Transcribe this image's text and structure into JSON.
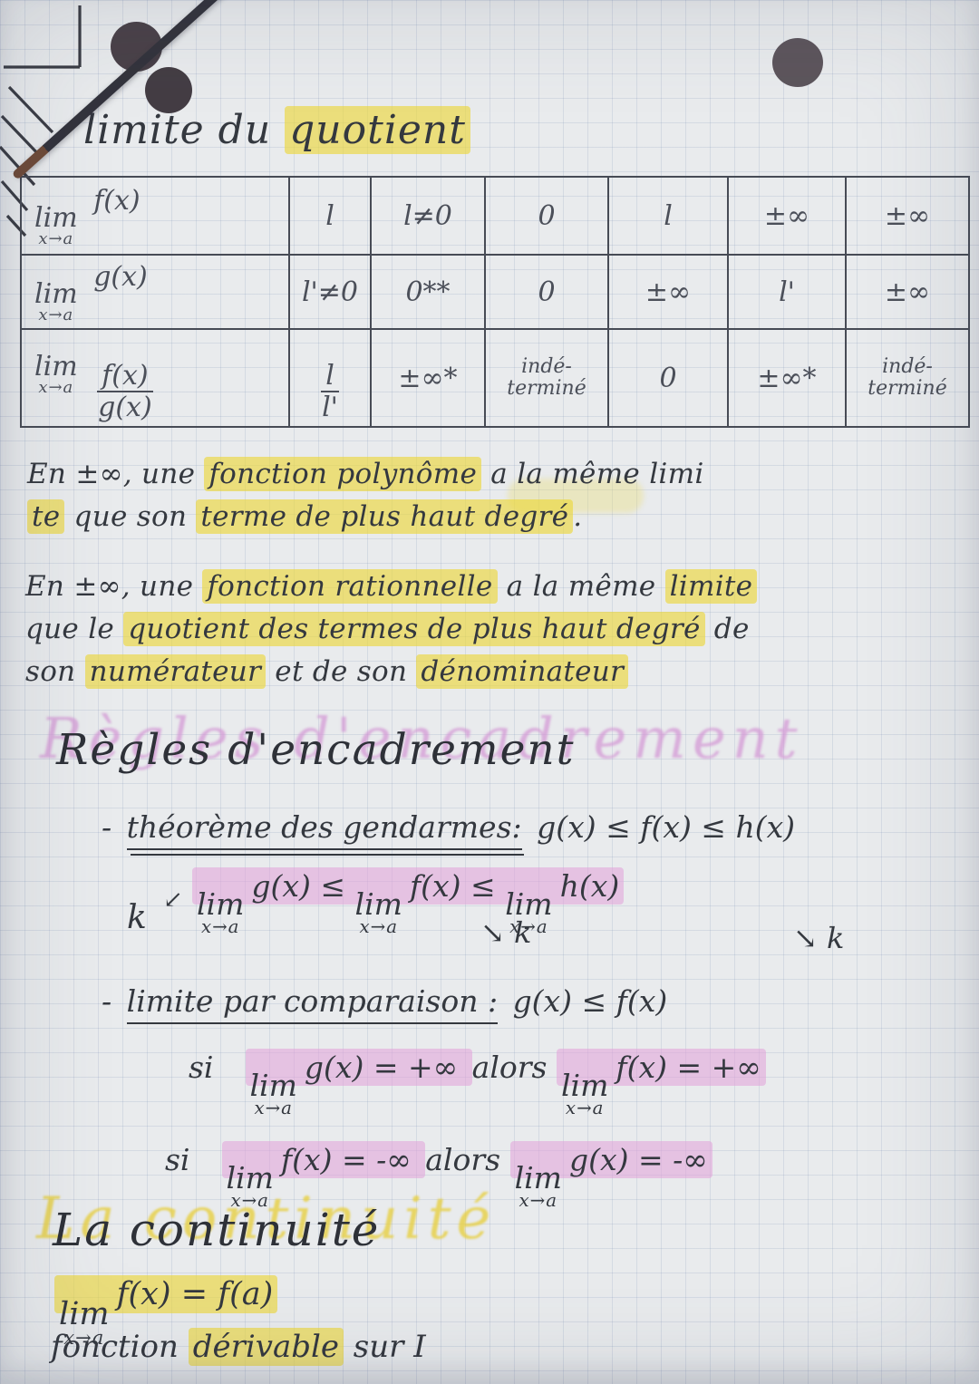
{
  "colors": {
    "paper": "#e9ebed",
    "grid_line": "#c7d0db",
    "ink": "#34383f",
    "pencil_table": "#4b4f59",
    "highlight_yellow": "#ecd735",
    "highlight_pink": "#e1a0d9",
    "marker_pink_echo": "#d296d4",
    "marker_yellow_echo": "#e7ce3e",
    "pen_tip_brown": "#6e4a38",
    "ink_dot_gray": "#4a4148"
  },
  "title": {
    "pre": "limite du ",
    "hl": "quotient"
  },
  "table": {
    "rows": [
      {
        "lim": "lim",
        "sub": "x→a",
        "expr": "f(x)",
        "cells": [
          "l",
          "l≠0",
          "0",
          "l",
          "±∞",
          "±∞"
        ]
      },
      {
        "lim": "lim",
        "sub": "x→a",
        "expr": "g(x)",
        "cells": [
          "l'≠0",
          "0**",
          "0",
          "±∞",
          "l'",
          "±∞"
        ]
      },
      {
        "lim": "lim",
        "sub": "x→a",
        "num": "f(x)",
        "den": "g(x)",
        "frac": {
          "num": "l",
          "den": "l'"
        },
        "cells": [
          "±∞*",
          "indé-\nterminé",
          "0",
          "±∞*",
          "indé-\nterminé"
        ]
      }
    ]
  },
  "p1": {
    "l1": [
      {
        "t": "En ±∞, une "
      },
      {
        "t": "fonction polynôme",
        "hl": "y"
      },
      {
        "t": " a la même limi"
      }
    ],
    "l2": [
      {
        "t": "te",
        "hl": "y"
      },
      {
        "t": " que son "
      },
      {
        "t": "terme de plus haut degré",
        "hl": "y"
      },
      {
        "t": "."
      }
    ]
  },
  "p2": {
    "l1": [
      {
        "t": "En ±∞, une "
      },
      {
        "t": "fonction rationnelle",
        "hl": "y"
      },
      {
        "t": " a la même "
      },
      {
        "t": "limite",
        "hl": "y"
      }
    ],
    "l2": [
      {
        "t": "que le "
      },
      {
        "t": "quotient des termes de plus haut degré",
        "hl": "y"
      },
      {
        "t": " de"
      }
    ],
    "l3": [
      {
        "t": "son "
      },
      {
        "t": "numérateur",
        "hl": "y"
      },
      {
        "t": " et de son "
      },
      {
        "t": "dénominateur",
        "hl": "y"
      }
    ]
  },
  "encadrement": {
    "heading": "Règles d'encadrement",
    "gendarmes": {
      "dash": "-",
      "label": "théorème des gendarmes:",
      "rhs": "g(x) ≤ f(x) ≤ h(x)"
    },
    "squeeze": {
      "k": "k",
      "swoop": "↙",
      "t1": {
        "lim": "lim",
        "sub": "x→a",
        "fn": "g(x)"
      },
      "le1": "≤",
      "t2": {
        "lim": "lim",
        "sub": "x→a",
        "fn": "f(x)"
      },
      "le2": "≤",
      "t3": {
        "lim": "lim",
        "sub": "x→a",
        "fn": "h(x)"
      },
      "k1": "↘ k",
      "k2": "↘ k"
    },
    "comparaison": {
      "dash": "-",
      "label": "limite par comparaison :",
      "rhs": "g(x) ≤ f(x)"
    },
    "si1": {
      "si": "si",
      "lim1": "lim",
      "sub1": "x→a",
      "e1": "g(x) = +∞",
      "alors": "alors",
      "lim2": "lim",
      "sub2": "x→a",
      "e2": "f(x) = +∞"
    },
    "si2": {
      "si": "si",
      "lim1": "lim",
      "sub1": "x→a",
      "e1": "f(x) = -∞",
      "alors": "alors",
      "lim2": "lim",
      "sub2": "x→a",
      "e2": "g(x) = -∞"
    }
  },
  "continuite": {
    "heading": "La continuité",
    "lim": "lim",
    "sub": "x→a",
    "formula": "f(x) = f(a)",
    "l2": [
      {
        "t": "fonction "
      },
      {
        "t": "dérivable",
        "hl": "y"
      },
      {
        "t": " sur I"
      }
    ]
  }
}
